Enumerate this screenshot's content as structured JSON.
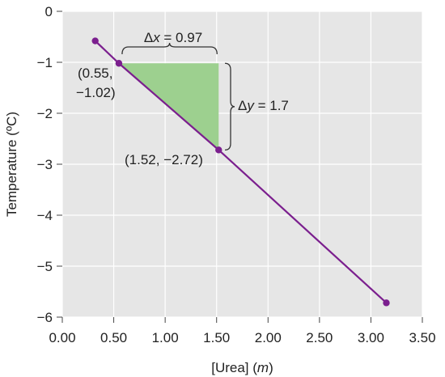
{
  "chart_data": {
    "type": "line",
    "xlabel": "[Urea] (m)",
    "xlabel_parts": {
      "main": "[Urea] (",
      "italic": "m",
      "end": ")"
    },
    "ylabel": "Temperature (ºC)",
    "xlim": [
      0,
      3.5
    ],
    "ylim": [
      -6,
      0
    ],
    "x_ticks": [
      0,
      0.5,
      1.0,
      1.5,
      2.0,
      2.5,
      3.0,
      3.5
    ],
    "x_tick_labels": [
      "0.00",
      "0.50",
      "1.00",
      "1.50",
      "2.00",
      "2.50",
      "3.00",
      "3.50"
    ],
    "y_ticks": [
      0,
      -1,
      -2,
      -3,
      -4,
      -5,
      -6
    ],
    "y_tick_labels": [
      "0",
      "−1",
      "−2",
      "−3",
      "−4",
      "−5",
      "−6"
    ],
    "grid": true,
    "series": [
      {
        "x": [
          0.32,
          0.55,
          1.52,
          3.15
        ],
        "y": [
          -0.58,
          -1.02,
          -2.72,
          -5.72
        ],
        "color": "#7b1f8e"
      }
    ],
    "annotations": {
      "triangle": {
        "x1": 0.55,
        "x2": 1.52,
        "y1": -1.02,
        "y2": -2.72,
        "color": "#9dd08f"
      },
      "point1_label": [
        "(0.55,",
        "−1.02)"
      ],
      "point2_label": "(1.52, −2.72)",
      "dx_label": {
        "symbol": "Δ",
        "var": "x",
        "rest": " = 0.97"
      },
      "dy_label": {
        "symbol": "Δ",
        "var": "y",
        "rest": " = 1.7"
      }
    },
    "colors": {
      "plot_bg": "#e6e6e6",
      "grid": "#ffffff",
      "line": "#7b1f8e",
      "bracket": "#333333"
    }
  }
}
